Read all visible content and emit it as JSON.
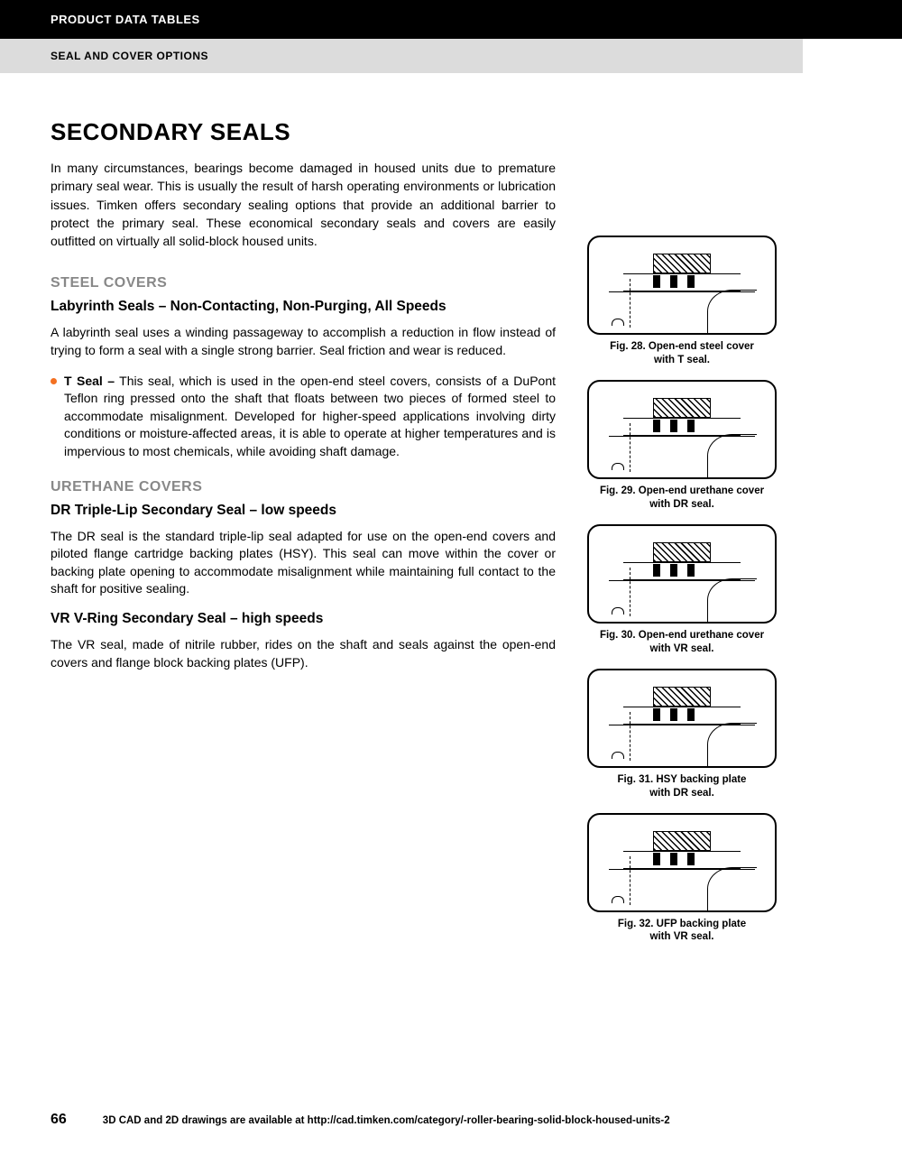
{
  "header": {
    "title": "PRODUCT DATA TABLES",
    "subtitle": "SEAL AND COVER OPTIONS"
  },
  "main": {
    "h1": "SECONDARY SEALS",
    "intro": "In many circumstances, bearings become damaged in housed units due to premature primary seal wear. This is usually the result of harsh operating environments or lubrication issues. Timken offers secondary sealing options that provide an additional barrier to protect the primary seal. These economical secondary seals and covers are easily outfitted on virtually all solid-block housed units.",
    "section1": {
      "h2": "STEEL COVERS",
      "h3": "Labyrinth Seals – Non-Contacting, Non-Purging, All Speeds",
      "p1": "A labyrinth seal uses a winding passageway to accomplish a reduction in flow instead of trying to form a seal with a single strong barrier. Seal friction and wear is reduced.",
      "bullet_label": "T Seal –",
      "bullet_text": " This seal, which is used in the open-end steel covers, consists of a DuPont Teflon ring pressed onto the shaft that floats between two pieces of formed steel to accommodate misalignment. Developed for higher-speed applications involving dirty conditions or moisture-affected areas, it is able to operate at higher temperatures and is impervious to most chemicals, while avoiding shaft damage."
    },
    "section2": {
      "h2": "URETHANE COVERS",
      "h3a": "DR Triple-Lip Secondary Seal – low speeds",
      "pa": "The DR seal is the standard triple-lip seal adapted for use on the open-end covers and piloted flange cartridge backing plates (HSY). This seal can move within the cover or backing plate opening to accommodate misalignment while maintaining full contact to the shaft for positive sealing.",
      "h3b": "VR V-Ring Secondary Seal – high speeds",
      "pb": "The VR seal, made of nitrile rubber, rides on the shaft and seals against the open-end covers and flange block backing plates (UFP)."
    }
  },
  "figures": [
    {
      "caption_l1": "Fig. 28. Open-end steel cover",
      "caption_l2": "with T seal."
    },
    {
      "caption_l1": "Fig. 29. Open-end urethane cover",
      "caption_l2": "with DR seal."
    },
    {
      "caption_l1": "Fig. 30. Open-end urethane cover",
      "caption_l2": "with VR seal."
    },
    {
      "caption_l1": "Fig. 31. HSY backing plate",
      "caption_l2": "with DR seal."
    },
    {
      "caption_l1": "Fig. 32. UFP backing plate",
      "caption_l2": "with VR seal."
    }
  ],
  "footer": {
    "page": "66",
    "note": "3D CAD and 2D drawings are available at http://cad.timken.com/category/-roller-bearing-solid-block-housed-units-2"
  },
  "colors": {
    "accent": "#f37021",
    "header_bg": "#000000",
    "subheader_bg": "#dcdcdc",
    "h2_color": "#888888"
  }
}
